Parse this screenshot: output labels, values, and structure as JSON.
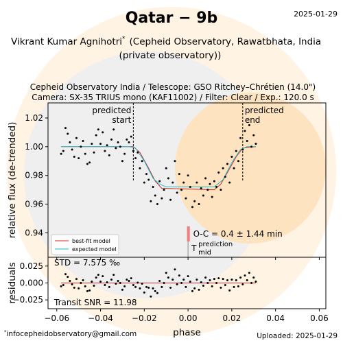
{
  "header": {
    "title": "Qatar − 9b",
    "date": "2025-01-29",
    "observer": "Vikrant Kumar Agnihotri",
    "observer_mark": "*",
    "affiliation": [
      "(Cepheid Observatory, Rawatbhata, India",
      "(private observatory))"
    ],
    "setup": [
      "Cepheid Observatory India / Telescope: GSO Ritchey–Chrétien (14.0\")",
      "Camera: SX-35 TRIUS mono (KAF11002) / Filter: Clear / Exp.: 120.0 s"
    ]
  },
  "footer": {
    "mark": "*",
    "email": "infocepheidobservatory@gmail.com",
    "uploaded": "Uploaded: 2025-01-29"
  },
  "chart_data": [
    {
      "type": "scatter",
      "ylabel": "relative flux (de-trended)",
      "xlim": [
        -0.064,
        0.063
      ],
      "ylim": [
        0.923,
        1.0305
      ],
      "yticks": [
        0.94,
        0.96,
        0.98,
        {
          "value": 1.0,
          "label": "1.00"
        },
        1.02
      ],
      "legend": "lower left",
      "points": {
        "color": "#000000",
        "x": [
          -0.058,
          -0.057,
          -0.056,
          -0.055,
          -0.054,
          -0.053,
          -0.052,
          -0.051,
          -0.05,
          -0.049,
          -0.048,
          -0.047,
          -0.046,
          -0.045,
          -0.044,
          -0.043,
          -0.042,
          -0.041,
          -0.04,
          -0.039,
          -0.038,
          -0.037,
          -0.036,
          -0.035,
          -0.034,
          -0.033,
          -0.032,
          -0.031,
          -0.03,
          -0.029,
          -0.028,
          -0.027,
          -0.026,
          -0.025,
          -0.024,
          -0.023,
          -0.022,
          -0.021,
          -0.02,
          -0.019,
          -0.018,
          -0.017,
          -0.016,
          -0.015,
          -0.014,
          -0.013,
          -0.012,
          -0.011,
          -0.01,
          -0.009,
          -0.008,
          -0.007,
          -0.006,
          -0.005,
          -0.004,
          -0.003,
          -0.002,
          -0.001,
          0.0,
          0.001,
          0.002,
          0.003,
          0.004,
          0.005,
          0.006,
          0.007,
          0.008,
          0.009,
          0.01,
          0.011,
          0.012,
          0.013,
          0.014,
          0.015,
          0.016,
          0.017,
          0.018,
          0.019,
          0.02,
          0.021,
          0.022,
          0.023,
          0.024,
          0.025,
          0.026,
          0.027,
          0.028,
          0.029,
          0.03,
          0.031
        ],
        "values": [
          0.995,
          0.997,
          1.013,
          1.009,
          1.003,
          0.998,
          0.993,
          1.006,
          0.992,
          1.0,
          1.004,
          0.995,
          0.988,
          0.989,
          1.002,
          0.996,
          1.008,
          1.012,
          1.002,
          1.01,
          0.997,
          1.001,
          0.994,
          1.005,
          1.012,
          0.999,
          1.003,
          1.0,
          0.99,
          0.995,
          1.005,
          1.003,
          1.007,
          0.997,
          0.992,
          0.996,
          0.985,
          0.99,
          0.975,
          0.981,
          0.977,
          0.962,
          0.972,
          0.966,
          0.96,
          0.976,
          0.964,
          0.97,
          0.985,
          0.978,
          0.963,
          0.975,
          0.99,
          0.968,
          0.981,
          0.97,
          0.975,
          0.964,
          0.98,
          0.972,
          0.958,
          0.962,
          0.975,
          0.96,
          0.971,
          0.966,
          0.978,
          0.97,
          0.974,
          0.965,
          0.976,
          0.972,
          0.982,
          0.97,
          0.985,
          0.979,
          0.988,
          0.975,
          0.993,
          0.985,
          0.997,
          0.99,
          1.006,
          0.998,
          1.011,
          1.004,
          1.015,
          1.0,
          1.008,
          1.002
        ]
      },
      "series": [
        {
          "name": "best-fit model",
          "color": "#d62728",
          "x": [
            -0.058,
            -0.025,
            -0.022,
            -0.018,
            -0.015,
            -0.012,
            0.012,
            0.015,
            0.018,
            0.022,
            0.025,
            0.031
          ],
          "values": [
            1.0,
            1.0,
            0.996,
            0.985,
            0.976,
            0.971,
            0.97,
            0.974,
            0.982,
            0.993,
            0.999,
            1.0
          ]
        },
        {
          "name": "expected model",
          "color": "#17becf",
          "x": [
            -0.058,
            -0.027,
            -0.024,
            -0.02,
            -0.016,
            -0.013,
            -0.01,
            0.012,
            0.016,
            0.02,
            0.024,
            0.027,
            0.031
          ],
          "values": [
            1.0,
            1.0,
            0.999,
            0.99,
            0.978,
            0.974,
            0.972,
            0.972,
            0.977,
            0.989,
            0.998,
            1.0,
            1.0
          ]
        }
      ],
      "vlines": [
        {
          "x": -0.025,
          "label": [
            "predicted",
            "start"
          ]
        },
        {
          "x": 0.025,
          "label": [
            "predicted",
            "end"
          ]
        }
      ],
      "mid": {
        "x": 0.0,
        "label": "T",
        "sup": "prediction",
        "sub": "mid"
      },
      "oc": {
        "label": "O-C = 0.4 ± 1.44 min",
        "x": 0.00018,
        "err": 0.00065
      }
    },
    {
      "type": "scatter",
      "ylabel": "residuals",
      "xlabel": "phase",
      "xlim": [
        -0.064,
        0.063
      ],
      "ylim": [
        -0.038,
        0.038
      ],
      "xticks": [
        {
          "value": -0.06,
          "label": "−0.06"
        },
        {
          "value": -0.04,
          "label": "−0.04"
        },
        {
          "value": -0.02,
          "label": "−0.02"
        },
        {
          "value": 0,
          "label": "0.00"
        },
        0.02,
        0.04,
        0.06
      ],
      "yticks": [
        {
          "value": -0.025,
          "label": "−0.025"
        },
        {
          "value": 0,
          "label": "0.000"
        },
        0.025
      ],
      "reference_line": 0,
      "reference_color": "#d62728",
      "annotations": [
        "STD = 7.575 ‰",
        "Transit SNR = 11.98"
      ],
      "points": {
        "color": "#000000",
        "x": [
          -0.058,
          -0.057,
          -0.056,
          -0.055,
          -0.054,
          -0.053,
          -0.052,
          -0.051,
          -0.05,
          -0.049,
          -0.048,
          -0.047,
          -0.046,
          -0.045,
          -0.044,
          -0.043,
          -0.042,
          -0.041,
          -0.04,
          -0.039,
          -0.038,
          -0.037,
          -0.036,
          -0.035,
          -0.034,
          -0.033,
          -0.032,
          -0.031,
          -0.03,
          -0.029,
          -0.028,
          -0.027,
          -0.026,
          -0.025,
          -0.024,
          -0.023,
          -0.022,
          -0.021,
          -0.02,
          -0.019,
          -0.018,
          -0.017,
          -0.016,
          -0.015,
          -0.014,
          -0.013,
          -0.012,
          -0.011,
          -0.01,
          -0.009,
          -0.008,
          -0.007,
          -0.006,
          -0.005,
          -0.004,
          -0.003,
          -0.002,
          -0.001,
          0.0,
          0.001,
          0.002,
          0.003,
          0.004,
          0.005,
          0.006,
          0.007,
          0.008,
          0.009,
          0.01,
          0.011,
          0.012,
          0.013,
          0.014,
          0.015,
          0.016,
          0.017,
          0.018,
          0.019,
          0.02,
          0.021,
          0.022,
          0.023,
          0.024,
          0.025,
          0.026,
          0.027,
          0.028,
          0.029,
          0.03,
          0.031
        ],
        "values": [
          -0.005,
          -0.003,
          0.013,
          0.009,
          0.003,
          -0.002,
          -0.007,
          0.006,
          -0.008,
          0,
          0.004,
          -0.005,
          -0.012,
          -0.011,
          0.002,
          -0.004,
          0.008,
          0.012,
          0.002,
          0.01,
          -0.003,
          0.001,
          -0.006,
          0.005,
          0.012,
          -0.001,
          0.003,
          0,
          -0.01,
          -0.005,
          0.005,
          0.003,
          0.007,
          -0.003,
          -0.006,
          0.0005,
          -0.008,
          -0.001,
          -0.014,
          -0.006,
          -0.007,
          -0.02,
          -0.008,
          -0.012,
          -0.015,
          0.003,
          -0.006,
          0,
          0.015,
          0.008,
          -0.007,
          0.005,
          0.02,
          -0.002,
          0.011,
          0,
          0.005,
          -0.006,
          0.01,
          0.002,
          -0.012,
          -0.008,
          0.005,
          -0.01,
          0.001,
          -0.004,
          0.008,
          0,
          0.004,
          -0.005,
          0.006,
          0,
          0.007,
          -0.007,
          0.006,
          -0.003,
          0.004,
          -0.011,
          0.005,
          -0.006,
          0.004,
          -0.005,
          0.008,
          -0.002,
          0.011,
          0.004,
          0.015,
          0,
          0.008,
          0.002
        ]
      }
    }
  ]
}
